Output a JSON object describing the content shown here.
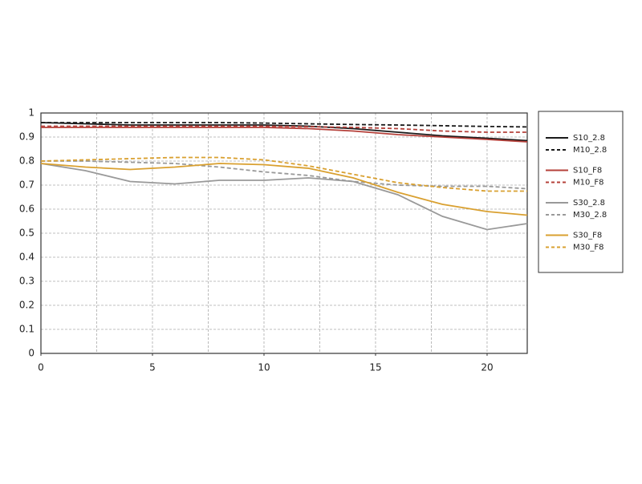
{
  "chart_data": {
    "type": "line",
    "x": [
      0,
      2,
      4,
      6,
      8,
      10,
      12,
      14,
      16,
      18,
      20,
      21.8
    ],
    "xlim": [
      0,
      21.8
    ],
    "ylim": [
      0,
      1
    ],
    "xticks": [
      0,
      5,
      10,
      15,
      20
    ],
    "xgrid": [
      2.5,
      5,
      7.5,
      10,
      12.5,
      15,
      17.5,
      20
    ],
    "yticks": [
      0,
      0.1,
      0.2,
      0.3,
      0.4,
      0.5,
      0.6,
      0.7,
      0.8,
      0.9,
      1
    ],
    "grid": true,
    "legend": "right",
    "series": [
      {
        "name": "S10_2.8",
        "color": "#1a1a1a",
        "dash": false,
        "values": [
          0.96,
          0.955,
          0.95,
          0.95,
          0.95,
          0.95,
          0.945,
          0.935,
          0.92,
          0.905,
          0.895,
          0.885
        ]
      },
      {
        "name": "M10_2.8",
        "color": "#1a1a1a",
        "dash": true,
        "values": [
          0.96,
          0.96,
          0.96,
          0.96,
          0.96,
          0.958,
          0.955,
          0.952,
          0.95,
          0.947,
          0.944,
          0.942
        ]
      },
      {
        "name": "S10_F8",
        "color": "#b5403a",
        "dash": false,
        "values": [
          0.94,
          0.94,
          0.94,
          0.94,
          0.94,
          0.94,
          0.935,
          0.925,
          0.91,
          0.9,
          0.89,
          0.88
        ]
      },
      {
        "name": "M10_F8",
        "color": "#b5403a",
        "dash": true,
        "values": [
          0.945,
          0.945,
          0.945,
          0.945,
          0.945,
          0.945,
          0.943,
          0.94,
          0.935,
          0.925,
          0.92,
          0.92
        ]
      },
      {
        "name": "S30_2.8",
        "color": "#999999",
        "dash": false,
        "values": [
          0.79,
          0.76,
          0.715,
          0.705,
          0.72,
          0.72,
          0.73,
          0.715,
          0.66,
          0.57,
          0.515,
          0.54
        ]
      },
      {
        "name": "M30_2.8",
        "color": "#999999",
        "dash": true,
        "values": [
          0.8,
          0.8,
          0.795,
          0.79,
          0.775,
          0.755,
          0.74,
          0.715,
          0.7,
          0.695,
          0.695,
          0.685
        ]
      },
      {
        "name": "S30_F8",
        "color": "#d9a030",
        "dash": false,
        "values": [
          0.79,
          0.775,
          0.765,
          0.775,
          0.79,
          0.785,
          0.77,
          0.73,
          0.67,
          0.62,
          0.59,
          0.575
        ]
      },
      {
        "name": "M30_F8",
        "color": "#d9a030",
        "dash": true,
        "values": [
          0.8,
          0.805,
          0.81,
          0.815,
          0.815,
          0.805,
          0.78,
          0.745,
          0.71,
          0.69,
          0.675,
          0.675
        ]
      }
    ]
  }
}
